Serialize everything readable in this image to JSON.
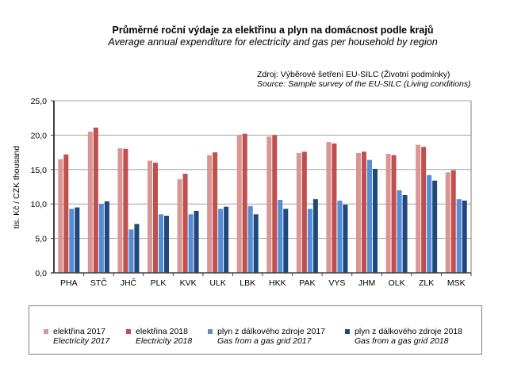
{
  "header": {
    "title": "Průměrné roční výdaje za elektřinu a plyn na domácnost podle krajů",
    "subtitle": "Average annual expenditure for electricity and gas per household by region",
    "source_cz": "Zdroj: Výběrové šetření EU-SILC (Životní podmínky)",
    "source_en": "Source: Sample survey of the EU-SILC (Living conditions)"
  },
  "legend": [
    {
      "label_cz": "elektřina 2017",
      "label_en": "Electricity 2017",
      "color": "#da9694"
    },
    {
      "label_cz": "elektřina 2018",
      "label_en": "Electricity 2018",
      "color": "#c0504d"
    },
    {
      "label_cz": "plyn z dálkového zdroje 2017",
      "label_en": "Gas from a gas grid 2017",
      "color": "#558ed5"
    },
    {
      "label_cz": "plyn z dálkového zdroje 2018",
      "label_en": "Gas from a gas grid 2018",
      "color": "#1f497d"
    }
  ],
  "chart_data": {
    "type": "bar",
    "title": "Průměrné roční výdaje za elektřinu a plyn na domácnost podle krajů",
    "subtitle": "Average annual expenditure for electricity and gas per household by region",
    "xlabel": "",
    "ylabel": "tis. Kč / CZK thousand",
    "ylim": [
      0,
      25
    ],
    "yticks": [
      "0,0",
      "5,0",
      "10,0",
      "15,0",
      "20,0",
      "25,0"
    ],
    "grid": true,
    "legend_position": "bottom",
    "categories": [
      "PHA",
      "STČ",
      "JHČ",
      "PLK",
      "KVK",
      "ULK",
      "LBK",
      "HKK",
      "PAK",
      "VYS",
      "JHM",
      "OLK",
      "ZLK",
      "MSK"
    ],
    "series": [
      {
        "name": "elektřina 2017 / Electricity 2017",
        "color": "#da9694",
        "values": [
          16.5,
          20.5,
          18.1,
          16.3,
          13.6,
          17.1,
          20.0,
          19.8,
          17.4,
          19.0,
          17.4,
          17.3,
          18.6,
          14.6
        ]
      },
      {
        "name": "elektřina 2018 / Electricity 2018",
        "color": "#c0504d",
        "values": [
          17.2,
          21.1,
          18.0,
          16.0,
          14.4,
          17.5,
          20.2,
          20.0,
          17.6,
          18.8,
          17.6,
          17.1,
          18.3,
          14.9
        ]
      },
      {
        "name": "plyn z dálkového zdroje 2017 / Gas from a gas grid 2017",
        "color": "#558ed5",
        "values": [
          9.3,
          10.0,
          6.3,
          8.5,
          8.5,
          9.3,
          9.7,
          10.6,
          9.3,
          10.5,
          16.4,
          12.0,
          14.2,
          10.7
        ]
      },
      {
        "name": "plyn z dálkového zdroje 2018 / Gas from a gas grid 2018",
        "color": "#1f497d",
        "values": [
          9.5,
          10.4,
          7.1,
          8.3,
          9.0,
          9.6,
          8.5,
          9.3,
          10.7,
          9.9,
          15.1,
          11.3,
          13.4,
          10.5
        ]
      }
    ]
  }
}
